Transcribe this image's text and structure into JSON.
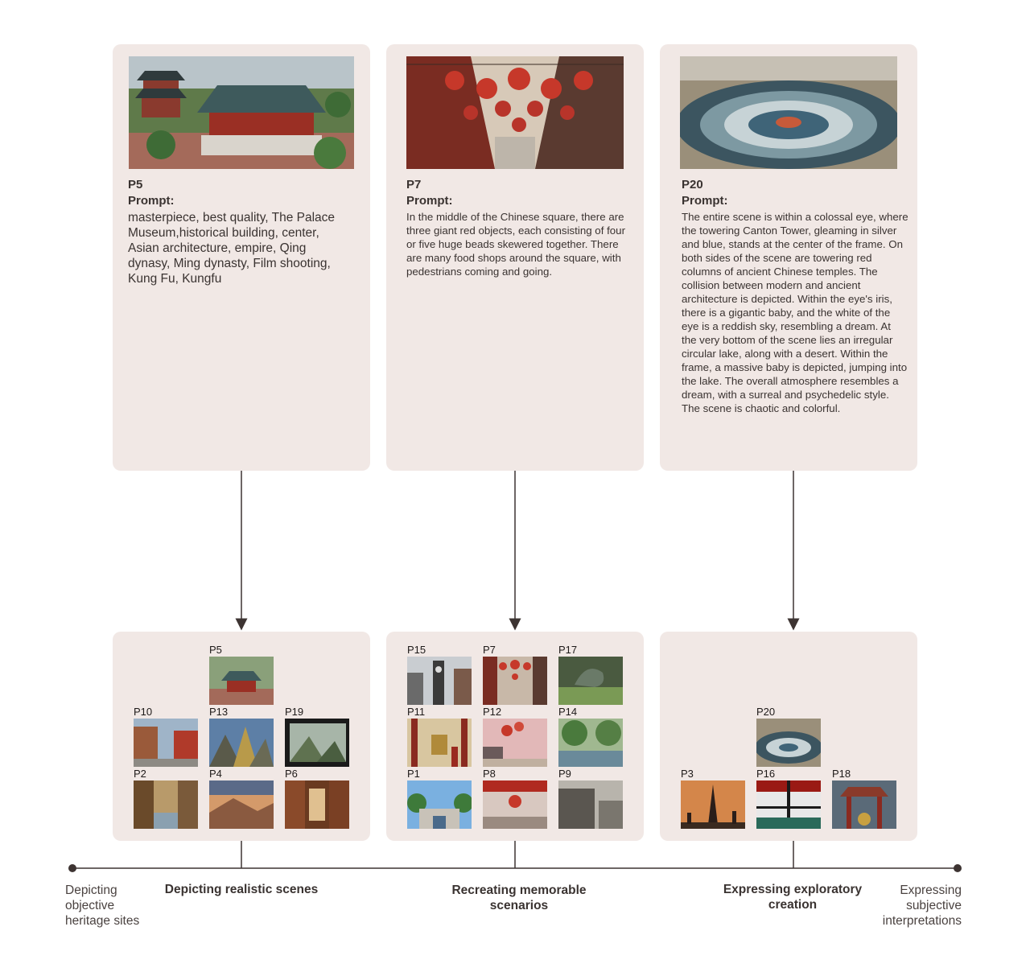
{
  "top_cards": [
    {
      "id": "P5",
      "prompt_label": "Prompt:",
      "text": "masterpiece, best quality, The Palace Museum,historical building, center, Asian architecture, empire, Qing dynasy, Ming dynasty, Film shooting, Kung Fu, Kungfu"
    },
    {
      "id": "P7",
      "prompt_label": "Prompt:",
      "text": "In the middle of the Chinese square, there are three giant red objects, each consisting of four or five huge beads skewered together. There are many food shops around the square, with pedestrians coming and going."
    },
    {
      "id": "P20",
      "prompt_label": "Prompt:",
      "text": "The entire scene is within a colossal eye, where the towering Canton Tower, gleaming in silver and blue, stands at the center of the frame. On both sides of the scene are towering red columns of ancient Chinese temples. The collision between modern and ancient architecture is depicted. Within the eye's iris, there is a gigantic baby, and the white of the eye is a reddish sky, resembling a dream. At the very bottom of the scene lies an irregular circular lake, along with a desert. Within the frame, a massive baby is depicted, jumping into the lake. The overall atmosphere resembles a dream, with a surreal and psychedelic style. The scene is chaotic and colorful."
    }
  ],
  "groups": [
    {
      "labels": [
        "P5",
        "P10",
        "P13",
        "P19",
        "P2",
        "P4",
        "P6"
      ]
    },
    {
      "labels": [
        "P15",
        "P7",
        "P17",
        "P11",
        "P12",
        "P14",
        "P1",
        "P8",
        "P9"
      ]
    },
    {
      "labels": [
        "P20",
        "P3",
        "P16",
        "P18"
      ]
    }
  ],
  "axis": {
    "left_end": "Depicting objective heritage sites",
    "right_end": "Expressing subjective interpretations",
    "categories": [
      "Depicting realistic scenes",
      "Recreating memorable scenarios",
      "Expressing exploratory creation"
    ]
  },
  "colors": {
    "card": "#f1e8e5",
    "line": "#3d3432",
    "text": "#3a3331"
  },
  "icons": [
    "palace-image",
    "lantern-street-image",
    "eye-lake-image"
  ]
}
